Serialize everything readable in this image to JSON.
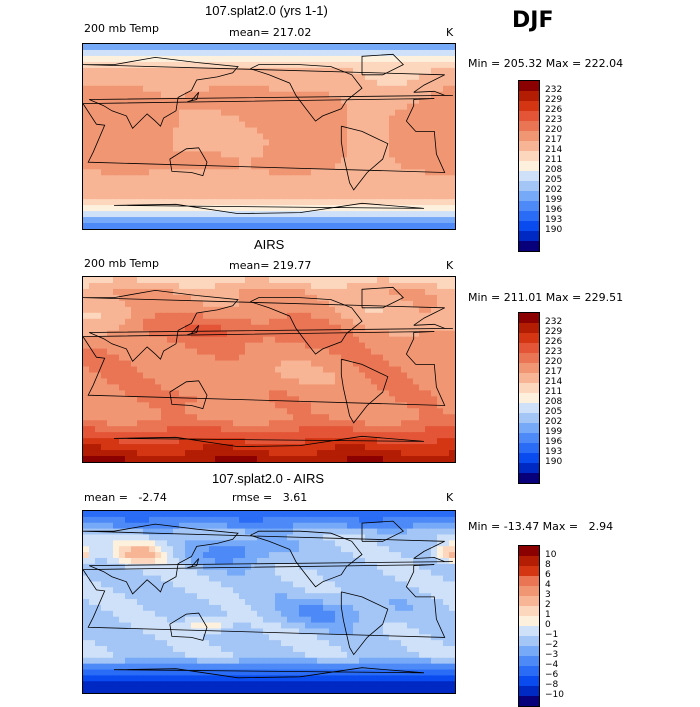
{
  "season": "DJF",
  "colors": {
    "temp_scale": [
      "#08007a",
      "#0029c4",
      "#0a4bf0",
      "#2a6cf5",
      "#4d8af7",
      "#76a9f7",
      "#a4c6f7",
      "#cfe1f8",
      "#fdf1de",
      "#fcd7bd",
      "#f7b595",
      "#f19673",
      "#ea7554",
      "#e35536",
      "#d43614",
      "#b31d03",
      "#8b0000"
    ],
    "diff_scale": [
      "#08007a",
      "#0029c4",
      "#0a4bf0",
      "#2a6cf5",
      "#4d8af7",
      "#76a9f7",
      "#a4c6f7",
      "#cfe1f8",
      "#fdf1de",
      "#fcd7bd",
      "#f7b595",
      "#f19673",
      "#ea7554",
      "#d43614",
      "#b31d03",
      "#8b0000"
    ],
    "coast": "#000000"
  },
  "chart_data": [
    {
      "type": "heatmap",
      "title": "107.splat2.0 (yrs 1-1)",
      "field_label": "200 mb Temp",
      "mean_label": "mean= 217.02",
      "units": "K",
      "minmax_label": "Min = 205.32 Max = 222.04",
      "min": 205.32,
      "max": 222.04,
      "colorbar_ticks": [
        "232",
        "229",
        "226",
        "223",
        "220",
        "217",
        "214",
        "211",
        "208",
        "205",
        "202",
        "199",
        "196",
        "193",
        "190"
      ],
      "pattern": "model"
    },
    {
      "type": "heatmap",
      "title": "AIRS",
      "field_label": "200 mb Temp",
      "mean_label": "mean= 219.77",
      "units": "K",
      "minmax_label": "Min = 211.01 Max = 229.51",
      "min": 211.01,
      "max": 229.51,
      "colorbar_ticks": [
        "232",
        "229",
        "226",
        "223",
        "220",
        "217",
        "214",
        "211",
        "208",
        "205",
        "202",
        "199",
        "196",
        "193",
        "190"
      ],
      "pattern": "obs"
    },
    {
      "type": "heatmap",
      "title": "107.splat2.0 - AIRS",
      "mean_label": "mean =   -2.74",
      "rmse_label": "rmse =   3.61",
      "units": "K",
      "minmax_label": "Min = -13.47 Max =   2.94",
      "min": -13.47,
      "max": 2.94,
      "colorbar_ticks": [
        "10",
        "8",
        "6",
        "4",
        "3",
        "2",
        "1",
        "0",
        "−1",
        "−2",
        "−3",
        "−4",
        "−6",
        "−8",
        "−10"
      ],
      "pattern": "diff"
    }
  ]
}
